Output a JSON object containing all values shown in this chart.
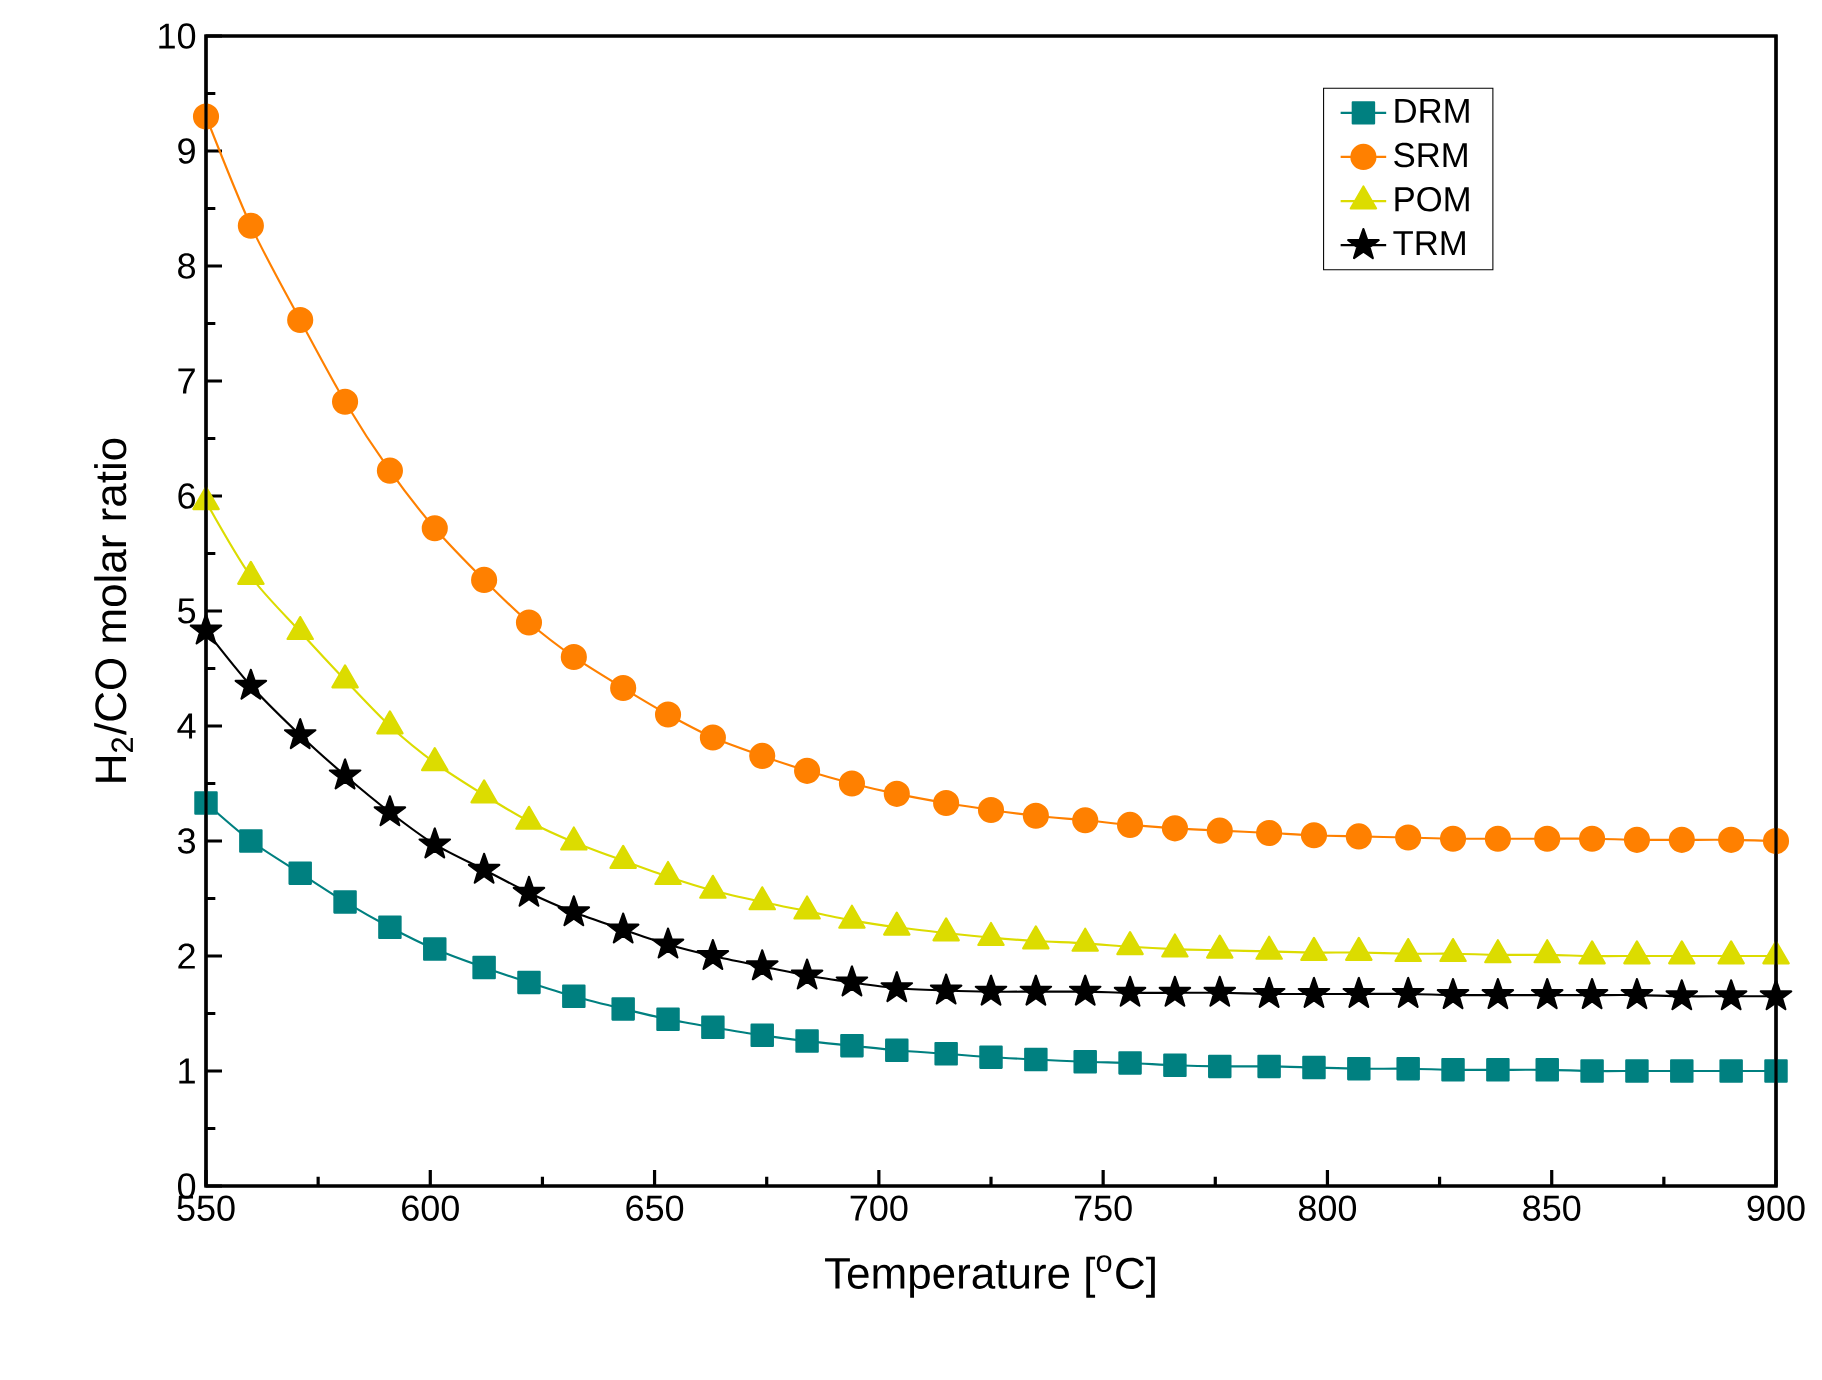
{
  "chart_data": {
    "type": "line",
    "xlabel": "Temperature [$^{o}$C]",
    "ylabel": "H$_{2}$/CO molar ratio",
    "x": [
      550,
      560,
      571,
      581,
      591,
      601,
      612,
      622,
      632,
      643,
      653,
      663,
      674,
      684,
      694,
      704,
      715,
      725,
      735,
      746,
      756,
      766,
      776,
      787,
      797,
      807,
      818,
      828,
      838,
      849,
      859,
      869,
      879,
      890,
      900
    ],
    "series": [
      {
        "name": "DRM",
        "color": "#008080",
        "marker": "square",
        "values": [
          3.33,
          3.0,
          2.72,
          2.47,
          2.25,
          2.06,
          1.9,
          1.77,
          1.65,
          1.54,
          1.45,
          1.38,
          1.31,
          1.26,
          1.22,
          1.18,
          1.15,
          1.12,
          1.1,
          1.08,
          1.07,
          1.05,
          1.04,
          1.04,
          1.03,
          1.02,
          1.02,
          1.01,
          1.01,
          1.01,
          1.0,
          1.0,
          1.0,
          1.0,
          1.0
        ]
      },
      {
        "name": "SRM",
        "color": "#ff8000",
        "marker": "circle",
        "values": [
          9.3,
          8.35,
          7.53,
          6.82,
          6.22,
          5.72,
          5.27,
          4.9,
          4.6,
          4.33,
          4.1,
          3.9,
          3.74,
          3.61,
          3.5,
          3.41,
          3.33,
          3.27,
          3.22,
          3.18,
          3.14,
          3.11,
          3.09,
          3.07,
          3.05,
          3.04,
          3.03,
          3.02,
          3.02,
          3.02,
          3.02,
          3.01,
          3.01,
          3.01,
          3.0
        ]
      },
      {
        "name": "POM",
        "color": "#dcdc00",
        "marker": "triangle",
        "values": [
          5.95,
          5.3,
          4.82,
          4.4,
          4.0,
          3.68,
          3.4,
          3.17,
          2.99,
          2.83,
          2.69,
          2.57,
          2.47,
          2.39,
          2.31,
          2.25,
          2.2,
          2.16,
          2.13,
          2.11,
          2.08,
          2.06,
          2.05,
          2.04,
          2.03,
          2.03,
          2.02,
          2.02,
          2.01,
          2.01,
          2.0,
          2.0,
          2.0,
          2.0,
          2.0
        ]
      },
      {
        "name": "TRM",
        "color": "#000000",
        "marker": "star",
        "values": [
          4.83,
          4.35,
          3.92,
          3.57,
          3.25,
          2.97,
          2.75,
          2.55,
          2.38,
          2.23,
          2.1,
          2.0,
          1.91,
          1.83,
          1.77,
          1.72,
          1.7,
          1.69,
          1.69,
          1.69,
          1.68,
          1.68,
          1.68,
          1.67,
          1.67,
          1.67,
          1.67,
          1.66,
          1.66,
          1.66,
          1.66,
          1.66,
          1.65,
          1.65,
          1.65
        ]
      }
    ],
    "xlim": [
      550,
      900
    ],
    "xticks": [
      550,
      600,
      650,
      700,
      750,
      800,
      850,
      900
    ],
    "ylim": [
      0,
      10
    ],
    "yticks": [
      0,
      1,
      2,
      3,
      4,
      5,
      6,
      7,
      8,
      9,
      10
    ],
    "grid": false,
    "legend": "top right",
    "line_style": "solid"
  }
}
